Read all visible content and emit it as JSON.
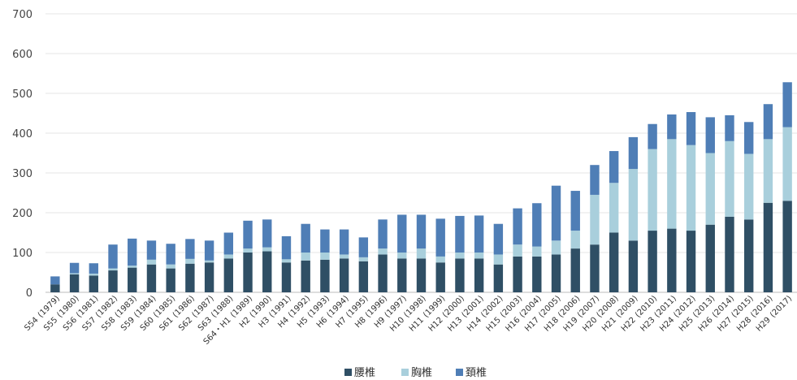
{
  "chart_data": {
    "type": "bar",
    "stacked": true,
    "categories": [
      "S54 (1979)",
      "S55 (1980)",
      "S56 (1981)",
      "S57 (1982)",
      "S58 (1983)",
      "S59 (1984)",
      "S60 (1985)",
      "S61 (1986)",
      "S62 (1987)",
      "S63 (1988)",
      "S64・H1 (1989)",
      "H2 (1990)",
      "H3 (1991)",
      "H4 (1992)",
      "H5 (1993)",
      "H6 (1994)",
      "H7 (1995)",
      "H8 (1996)",
      "H9 (1997)",
      "H10 (1998)",
      "H11 (1999)",
      "H12 (2000)",
      "H13 (2001)",
      "H14 (2002)",
      "H15 (2003)",
      "H16 (2004)",
      "H17 (2005)",
      "H18 (2006)",
      "H19 (2007)",
      "H20 (2008)",
      "H21 (2009)",
      "H22 (2010)",
      "H23 (2011)",
      "H24 (2012)",
      "H25 (2013)",
      "H26 (2014)",
      "H27 (2015)",
      "H28 (2016)",
      "H29 (2017)"
    ],
    "series": [
      {
        "name": "腰椎",
        "color": "#2f4f65",
        "values": [
          20,
          45,
          42,
          55,
          62,
          70,
          60,
          72,
          75,
          85,
          100,
          103,
          75,
          80,
          82,
          85,
          78,
          95,
          85,
          85,
          75,
          85,
          85,
          70,
          90,
          90,
          95,
          110,
          120,
          150,
          130,
          155,
          160,
          155,
          170,
          190,
          183,
          225,
          230
        ]
      },
      {
        "name": "胸椎",
        "color": "#a9cfdc",
        "values": [
          0,
          3,
          5,
          5,
          5,
          12,
          10,
          12,
          5,
          10,
          10,
          10,
          8,
          20,
          18,
          10,
          10,
          15,
          15,
          25,
          15,
          15,
          15,
          25,
          30,
          25,
          35,
          45,
          125,
          125,
          180,
          205,
          225,
          215,
          180,
          190,
          165,
          160,
          185
        ]
      },
      {
        "name": "頚椎",
        "color": "#4f7eb6",
        "values": [
          20,
          26,
          26,
          60,
          68,
          48,
          52,
          50,
          50,
          55,
          70,
          70,
          58,
          72,
          58,
          63,
          50,
          73,
          95,
          85,
          95,
          92,
          93,
          77,
          91,
          109,
          138,
          100,
          75,
          80,
          80,
          63,
          62,
          83,
          90,
          65,
          80,
          88,
          113
        ]
      }
    ],
    "y_ticks": [
      "0",
      "100",
      "200",
      "300",
      "400",
      "500",
      "600",
      "700"
    ],
    "ylim": [
      0,
      700
    ],
    "grid": true,
    "legend": "bottom",
    "x_tick_label_lines": [
      [
        "S54",
        "(1979)"
      ],
      [
        "S55",
        "(1980)"
      ],
      [
        "S56",
        "(1981)"
      ],
      [
        "S57",
        "(1982)"
      ],
      [
        "S58",
        "(1983)"
      ],
      [
        "S59",
        "(1984)"
      ],
      [
        "S60",
        "(1985)"
      ],
      [
        "S61",
        "(1986)"
      ],
      [
        "S62",
        "(1987)"
      ],
      [
        "S63",
        "(1988)"
      ],
      [
        "S64・H1",
        "(1989)"
      ],
      [
        "H2",
        "(1990)"
      ],
      [
        "H3",
        "(1991)"
      ],
      [
        "H4",
        "(1992)"
      ],
      [
        "H5",
        "(1993)"
      ],
      [
        "H6",
        "(1994)"
      ],
      [
        "H7",
        "(1995)"
      ],
      [
        "H8",
        "(1996)"
      ],
      [
        "H9",
        "(1997)"
      ],
      [
        "H10",
        "(1998)"
      ],
      [
        "H11",
        "(1999)"
      ],
      [
        "H12",
        "(2000)"
      ],
      [
        "H13",
        "(2001)"
      ],
      [
        "H14",
        "(2002)"
      ],
      [
        "H15",
        "(2003)"
      ],
      [
        "H16",
        "(2004)"
      ],
      [
        "H17",
        "(2005)"
      ],
      [
        "H18",
        "(2006)"
      ],
      [
        "H19",
        "(2007)"
      ],
      [
        "H20",
        "(2008)"
      ],
      [
        "H21",
        "(2009)"
      ],
      [
        "H22",
        "(2010)"
      ],
      [
        "H23",
        "(2011)"
      ],
      [
        "H24",
        "(2012)"
      ],
      [
        "H25",
        "(2013)"
      ],
      [
        "H26",
        "(2014)"
      ],
      [
        "H27",
        "(2015)"
      ],
      [
        "H28",
        "(2016)"
      ],
      [
        "H29",
        "(2017)"
      ]
    ]
  }
}
